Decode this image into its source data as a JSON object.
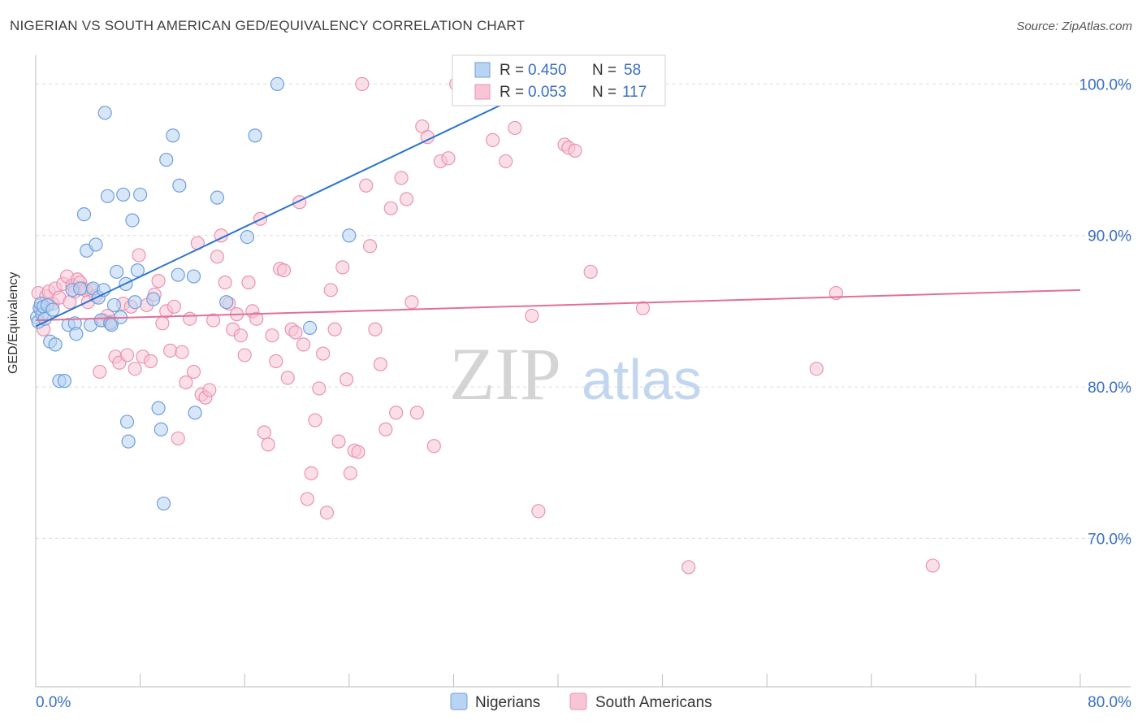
{
  "header": {
    "title": "NIGERIAN VS SOUTH AMERICAN GED/EQUIVALENCY CORRELATION CHART",
    "source": "Source: ZipAtlas.com"
  },
  "watermark": {
    "zip": "ZIP",
    "atlas": "atlas"
  },
  "legend_box": {
    "rows": [
      {
        "r_label": "R =",
        "r_value": "0.450",
        "n_label": "N =",
        "n_value": "58"
      },
      {
        "r_label": "R =",
        "r_value": "0.053",
        "n_label": "N =",
        "n_value": "117"
      }
    ]
  },
  "bottom_legend": {
    "series1": "Nigerians",
    "series2": "South Americans"
  },
  "colors": {
    "blue_fill": "#b8d3f3",
    "blue_stroke": "#6e9fdd",
    "blue_line": "#2b74cf",
    "pink_fill": "#f8c5d6",
    "pink_stroke": "#e993b2",
    "pink_line": "#e36f98",
    "value_text": "#3a6fc4",
    "grid": "#dcdcdc"
  },
  "chart_data": {
    "type": "scatter",
    "title": "NIGERIAN VS SOUTH AMERICAN GED/EQUIVALENCY CORRELATION CHART",
    "xlabel": "",
    "ylabel": "GED/Equivalency",
    "xlim": [
      0,
      80
    ],
    "ylim": [
      60.2,
      101.9
    ],
    "x_tick_labels": [
      "0.0%",
      "80.0%"
    ],
    "y_ticks": [
      70,
      80,
      90,
      100
    ],
    "y_tick_labels": [
      "70.0%",
      "80.0%",
      "90.0%",
      "100.0%"
    ],
    "grid": true,
    "legend": "top-center",
    "series": [
      {
        "name": "Nigerians",
        "R": 0.45,
        "N": 58,
        "trend": {
          "x": [
            0,
            39
          ],
          "y": [
            84.0,
            100.0
          ]
        },
        "points": [
          [
            0.1,
            84.6
          ],
          [
            0.2,
            84.3
          ],
          [
            0.3,
            85.2
          ],
          [
            0.4,
            85.5
          ],
          [
            0.5,
            84.8
          ],
          [
            0.6,
            85.3
          ],
          [
            0.7,
            84.5
          ],
          [
            0.9,
            85.4
          ],
          [
            1.1,
            83.0
          ],
          [
            1.3,
            85.1
          ],
          [
            1.5,
            82.8
          ],
          [
            1.8,
            80.4
          ],
          [
            2.2,
            80.4
          ],
          [
            2.5,
            84.1
          ],
          [
            2.8,
            86.4
          ],
          [
            3.0,
            84.2
          ],
          [
            3.1,
            83.5
          ],
          [
            3.4,
            86.5
          ],
          [
            3.7,
            91.4
          ],
          [
            3.9,
            89.0
          ],
          [
            4.2,
            84.1
          ],
          [
            4.4,
            86.5
          ],
          [
            4.6,
            89.4
          ],
          [
            4.8,
            85.9
          ],
          [
            5.0,
            84.4
          ],
          [
            5.2,
            86.4
          ],
          [
            5.3,
            98.1
          ],
          [
            5.5,
            92.6
          ],
          [
            5.7,
            84.2
          ],
          [
            5.8,
            84.1
          ],
          [
            6.0,
            85.4
          ],
          [
            6.2,
            87.6
          ],
          [
            6.5,
            84.6
          ],
          [
            6.7,
            92.7
          ],
          [
            6.9,
            86.8
          ],
          [
            7.0,
            77.7
          ],
          [
            7.1,
            76.4
          ],
          [
            7.4,
            91.0
          ],
          [
            7.6,
            85.6
          ],
          [
            7.8,
            87.7
          ],
          [
            8.0,
            92.7
          ],
          [
            9.0,
            85.8
          ],
          [
            9.4,
            78.6
          ],
          [
            9.6,
            77.2
          ],
          [
            9.8,
            72.3
          ],
          [
            10.0,
            95.0
          ],
          [
            10.5,
            96.6
          ],
          [
            10.9,
            87.4
          ],
          [
            11.0,
            93.3
          ],
          [
            12.1,
            87.3
          ],
          [
            12.2,
            78.3
          ],
          [
            13.9,
            92.5
          ],
          [
            14.6,
            85.6
          ],
          [
            16.2,
            89.9
          ],
          [
            16.8,
            96.6
          ],
          [
            18.5,
            100.0
          ],
          [
            21.0,
            83.9
          ],
          [
            24.0,
            90.0
          ]
        ]
      },
      {
        "name": "South Americans",
        "R": 0.053,
        "N": 117,
        "trend": {
          "x": [
            0,
            80
          ],
          "y": [
            84.4,
            86.4
          ]
        },
        "points": [
          [
            0.2,
            86.2
          ],
          [
            0.4,
            85.2
          ],
          [
            0.6,
            83.8
          ],
          [
            0.8,
            86.0
          ],
          [
            1.0,
            86.3
          ],
          [
            1.3,
            85.5
          ],
          [
            1.5,
            86.5
          ],
          [
            1.8,
            85.9
          ],
          [
            2.1,
            86.8
          ],
          [
            2.4,
            87.3
          ],
          [
            2.6,
            85.6
          ],
          [
            2.8,
            86.7
          ],
          [
            3.0,
            86.3
          ],
          [
            3.2,
            87.1
          ],
          [
            3.4,
            86.9
          ],
          [
            3.6,
            86.5
          ],
          [
            3.8,
            86.4
          ],
          [
            4.0,
            85.6
          ],
          [
            4.3,
            86.4
          ],
          [
            4.6,
            86.0
          ],
          [
            4.9,
            81.0
          ],
          [
            5.2,
            84.4
          ],
          [
            5.5,
            84.7
          ],
          [
            5.8,
            84.3
          ],
          [
            6.1,
            82.0
          ],
          [
            6.4,
            81.6
          ],
          [
            6.7,
            85.5
          ],
          [
            7.0,
            82.1
          ],
          [
            7.3,
            85.3
          ],
          [
            7.6,
            81.2
          ],
          [
            7.9,
            88.7
          ],
          [
            8.2,
            82.0
          ],
          [
            8.5,
            85.4
          ],
          [
            8.8,
            81.7
          ],
          [
            9.1,
            86.1
          ],
          [
            9.4,
            87.0
          ],
          [
            9.7,
            84.2
          ],
          [
            10.0,
            85.0
          ],
          [
            10.3,
            82.4
          ],
          [
            10.6,
            85.3
          ],
          [
            10.9,
            76.6
          ],
          [
            11.2,
            82.3
          ],
          [
            11.5,
            80.3
          ],
          [
            11.8,
            84.5
          ],
          [
            12.1,
            81.0
          ],
          [
            12.4,
            89.5
          ],
          [
            12.7,
            79.5
          ],
          [
            13.0,
            79.3
          ],
          [
            13.3,
            79.8
          ],
          [
            13.6,
            84.4
          ],
          [
            13.9,
            88.6
          ],
          [
            14.2,
            90.0
          ],
          [
            14.5,
            86.9
          ],
          [
            14.8,
            85.5
          ],
          [
            15.1,
            83.8
          ],
          [
            15.4,
            84.8
          ],
          [
            15.7,
            83.4
          ],
          [
            16.0,
            82.1
          ],
          [
            16.3,
            86.9
          ],
          [
            16.6,
            85.0
          ],
          [
            16.9,
            84.5
          ],
          [
            17.2,
            91.1
          ],
          [
            17.5,
            77.0
          ],
          [
            17.8,
            76.2
          ],
          [
            18.1,
            83.4
          ],
          [
            18.4,
            81.7
          ],
          [
            18.7,
            87.8
          ],
          [
            19.0,
            87.7
          ],
          [
            19.3,
            80.6
          ],
          [
            19.6,
            83.8
          ],
          [
            19.9,
            83.6
          ],
          [
            20.2,
            92.2
          ],
          [
            20.5,
            82.8
          ],
          [
            20.8,
            72.6
          ],
          [
            21.1,
            74.3
          ],
          [
            21.4,
            77.8
          ],
          [
            21.7,
            79.9
          ],
          [
            22.0,
            82.2
          ],
          [
            22.3,
            71.7
          ],
          [
            22.6,
            86.4
          ],
          [
            22.9,
            83.8
          ],
          [
            23.2,
            76.4
          ],
          [
            23.5,
            87.9
          ],
          [
            23.8,
            80.5
          ],
          [
            24.1,
            74.3
          ],
          [
            24.4,
            75.8
          ],
          [
            24.7,
            75.7
          ],
          [
            25.0,
            100.0
          ],
          [
            25.3,
            93.3
          ],
          [
            25.6,
            89.3
          ],
          [
            26.0,
            83.8
          ],
          [
            26.4,
            81.5
          ],
          [
            26.8,
            77.2
          ],
          [
            27.2,
            91.8
          ],
          [
            27.6,
            78.3
          ],
          [
            28.0,
            93.8
          ],
          [
            28.4,
            92.4
          ],
          [
            28.8,
            85.6
          ],
          [
            29.2,
            78.3
          ],
          [
            29.6,
            97.2
          ],
          [
            30.0,
            96.5
          ],
          [
            30.5,
            76.1
          ],
          [
            31.0,
            94.9
          ],
          [
            31.6,
            95.1
          ],
          [
            32.2,
            100.0
          ],
          [
            33.0,
            100.0
          ],
          [
            35.0,
            96.3
          ],
          [
            36.0,
            94.9
          ],
          [
            36.7,
            97.1
          ],
          [
            38.0,
            84.7
          ],
          [
            38.5,
            71.8
          ],
          [
            40.5,
            96.0
          ],
          [
            40.8,
            95.8
          ],
          [
            41.3,
            95.6
          ],
          [
            42.5,
            87.6
          ],
          [
            46.5,
            85.2
          ],
          [
            50.0,
            68.1
          ],
          [
            59.8,
            81.2
          ],
          [
            61.3,
            86.2
          ],
          [
            68.7,
            68.2
          ],
          [
            32.5,
            100.0
          ]
        ]
      }
    ]
  }
}
